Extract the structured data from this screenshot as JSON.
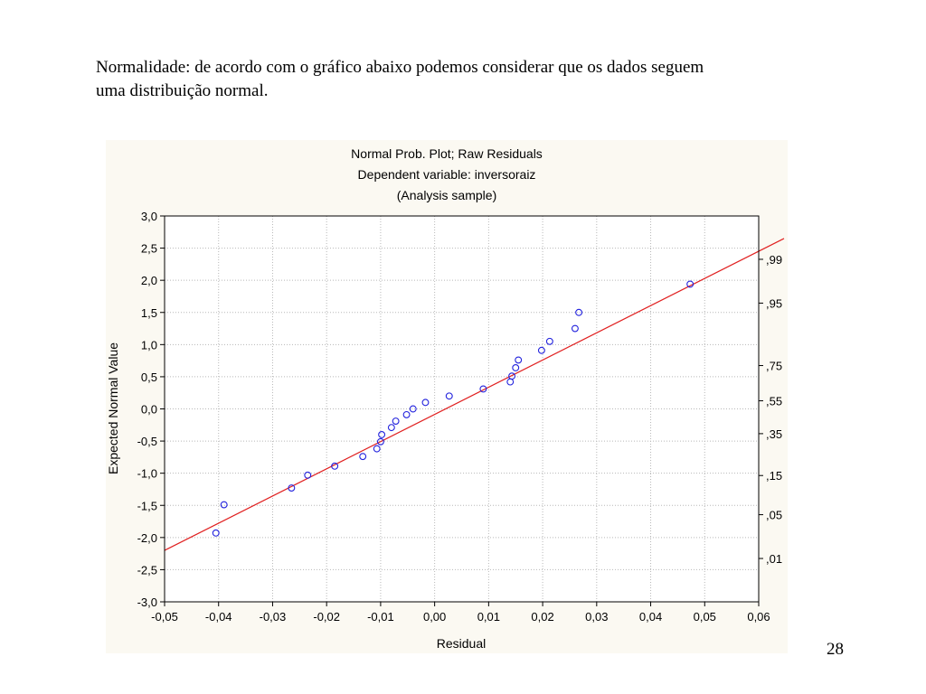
{
  "slide": {
    "line1": "Normalidade: de acordo com o gráfico abaixo podemos considerar que os dados seguem",
    "line2": "uma distribuição normal.",
    "page_number": "28"
  },
  "colors": {
    "points": "#2222dd",
    "fit_line": "#e02020",
    "grid": "#b8b8b8",
    "panel_background": "#fbf9f2",
    "plot_background": "#ffffff"
  },
  "chart_data": {
    "type": "scatter",
    "title": "Normal Prob. Plot; Raw Residuals",
    "subtitle": "Dependent variable: inversoraiz",
    "subtitle2": "(Analysis sample)",
    "xlabel": "Residual",
    "ylabel": "Expected Normal Value",
    "xlim": [
      -0.05,
      0.06
    ],
    "ylim": [
      -3.0,
      3.0
    ],
    "x_ticks": [
      -0.05,
      -0.04,
      -0.03,
      -0.02,
      -0.01,
      0.0,
      0.01,
      0.02,
      0.03,
      0.04,
      0.05,
      0.06
    ],
    "x_tick_labels": [
      "-0,05",
      "-0,04",
      "-0,03",
      "-0,02",
      "-0,01",
      "0,00",
      "0,01",
      "0,02",
      "0,03",
      "0,04",
      "0,05",
      "0,06"
    ],
    "y_ticks": [
      -3.0,
      -2.5,
      -2.0,
      -1.5,
      -1.0,
      -0.5,
      0.0,
      0.5,
      1.0,
      1.5,
      2.0,
      2.5,
      3.0
    ],
    "y_tick_labels": [
      "-3,0",
      "-2,5",
      "-2,0",
      "-1,5",
      "-1,0",
      "-0,5",
      "0,0",
      "0,5",
      "1,0",
      "1,5",
      "2,0",
      "2,5",
      "3,0"
    ],
    "right_axis": {
      "labels": [
        ",01",
        ",05",
        ",15",
        ",35",
        ",55",
        ",75",
        ",95",
        ",99"
      ],
      "positions": [
        -2.326,
        -1.645,
        -1.036,
        -0.385,
        0.126,
        0.674,
        1.645,
        2.326
      ]
    },
    "grid": true,
    "fit_line": {
      "x": [
        -0.05,
        0.06
      ],
      "y": [
        -2.2,
        2.65
      ]
    },
    "points": {
      "x": [
        -0.0405,
        -0.039,
        -0.0265,
        -0.0235,
        -0.0185,
        -0.0133,
        -0.0107,
        -0.01,
        -0.0098,
        -0.008,
        -0.0072,
        -0.0052,
        -0.004,
        -0.0017,
        0.0027,
        0.009,
        0.014,
        0.0143,
        0.015,
        0.0155,
        0.0198,
        0.0213,
        0.026,
        0.0267,
        0.0473
      ],
      "y": [
        -1.93,
        -1.49,
        -1.23,
        -1.03,
        -0.89,
        -0.74,
        -0.62,
        -0.51,
        -0.4,
        -0.29,
        -0.19,
        -0.09,
        0.0,
        0.1,
        0.2,
        0.31,
        0.42,
        0.51,
        0.64,
        0.76,
        0.91,
        1.05,
        1.25,
        1.5,
        1.94
      ]
    }
  }
}
